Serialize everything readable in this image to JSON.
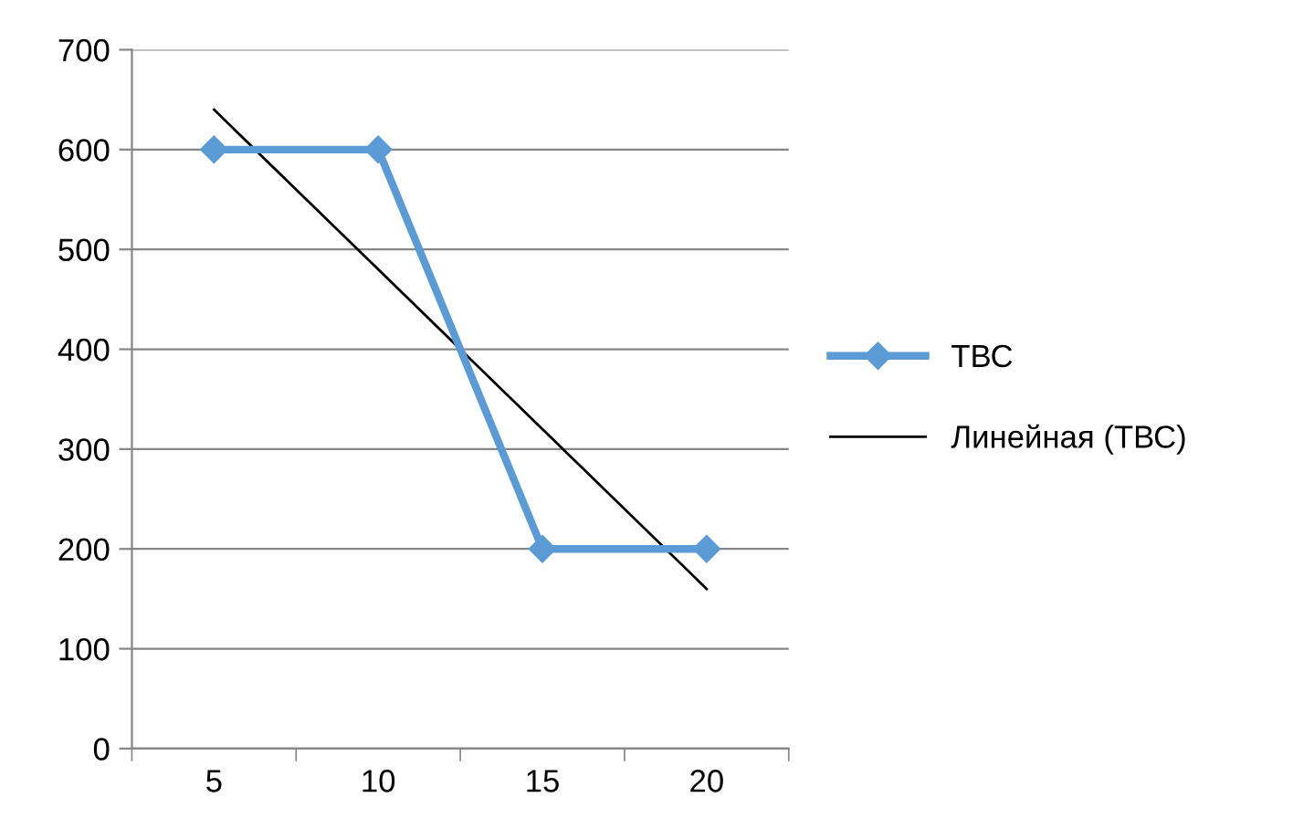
{
  "chart_data": {
    "type": "line",
    "categories": [
      "5",
      "10",
      "15",
      "20"
    ],
    "series": [
      {
        "name": "ТВС",
        "color": "#5b9bd5",
        "values": [
          600,
          600,
          200,
          200
        ],
        "marker": "diamond",
        "line_style": "solid"
      },
      {
        "name": "Линейная (ТВС)",
        "color": "#000000",
        "values": [
          640,
          480,
          320,
          160
        ],
        "marker": "none",
        "line_style": "solid"
      }
    ],
    "ylim": [
      0,
      700
    ],
    "yticks": [
      0,
      100,
      200,
      300,
      400,
      500,
      600,
      700
    ],
    "grid": "y",
    "legend": "right"
  }
}
